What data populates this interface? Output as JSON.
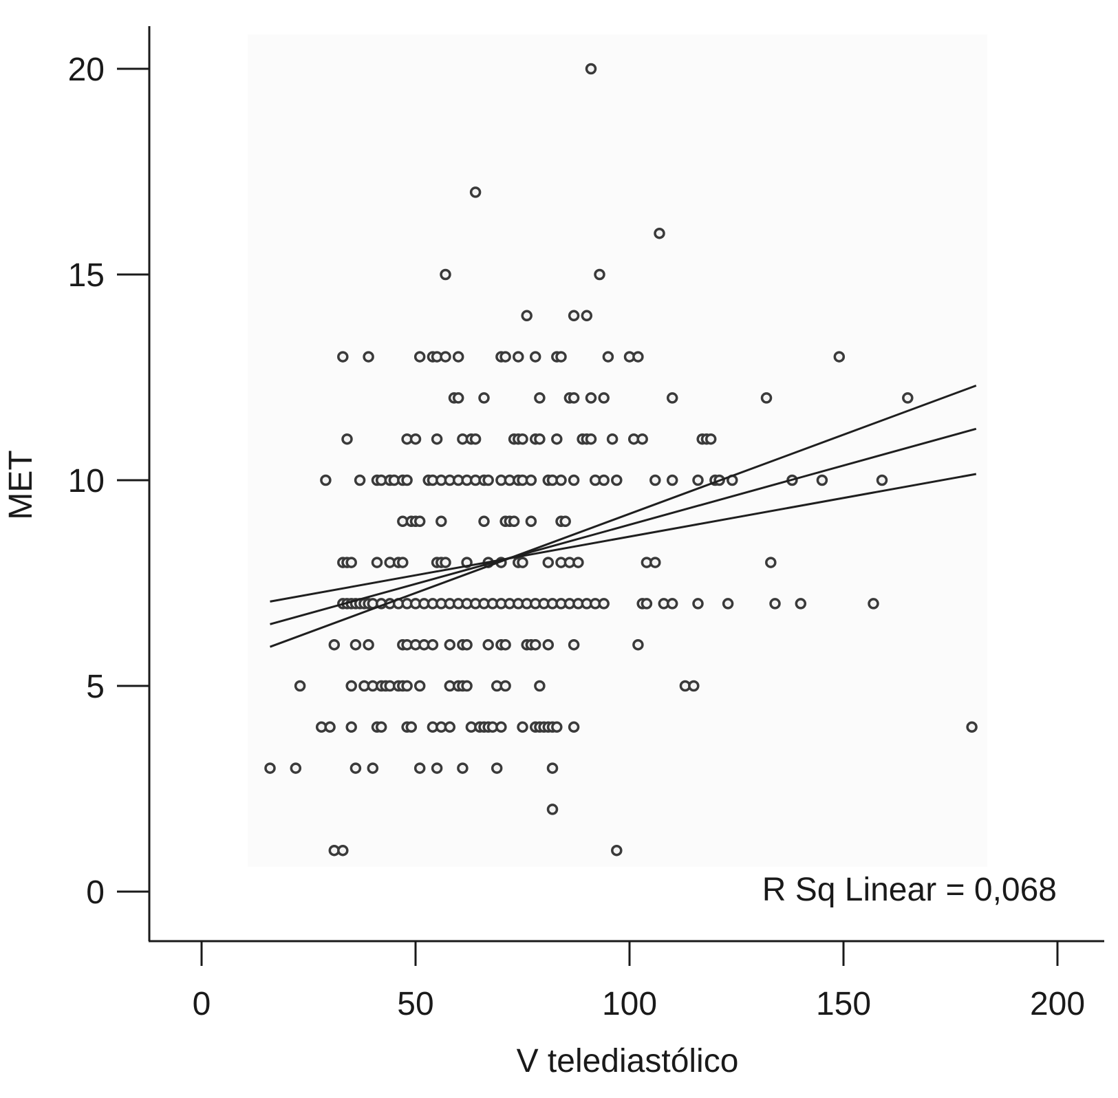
{
  "chart_data": {
    "type": "scatter",
    "xlabel": "V telediastólico",
    "ylabel": "MET",
    "xlim": [
      -12,
      212
    ],
    "ylim": [
      -1.2,
      21.2
    ],
    "xticks": [
      0,
      50,
      100,
      150,
      200
    ],
    "yticks": [
      0,
      5,
      10,
      15,
      20
    ],
    "grid": false,
    "annotation": "R Sq Linear = 0,068",
    "fit_line": {
      "x": [
        16,
        181
      ],
      "y": [
        6.5,
        11.25
      ]
    },
    "ci_upper": {
      "x": [
        16,
        181
      ],
      "y": [
        5.95,
        12.3
      ]
    },
    "ci_lower": {
      "x": [
        16,
        181
      ],
      "y": [
        7.05,
        10.15
      ]
    },
    "points": [
      [
        91,
        20
      ],
      [
        64,
        17
      ],
      [
        107,
        16
      ],
      [
        57,
        15
      ],
      [
        93,
        15
      ],
      [
        76,
        14
      ],
      [
        87,
        14
      ],
      [
        90,
        14
      ],
      [
        33,
        13
      ],
      [
        39,
        13
      ],
      [
        51,
        13
      ],
      [
        54,
        13
      ],
      [
        55,
        13
      ],
      [
        57,
        13
      ],
      [
        60,
        13
      ],
      [
        70,
        13
      ],
      [
        71,
        13
      ],
      [
        74,
        13
      ],
      [
        78,
        13
      ],
      [
        83,
        13
      ],
      [
        84,
        13
      ],
      [
        95,
        13
      ],
      [
        100,
        13
      ],
      [
        102,
        13
      ],
      [
        149,
        13
      ],
      [
        59,
        12
      ],
      [
        60,
        12
      ],
      [
        66,
        12
      ],
      [
        79,
        12
      ],
      [
        86,
        12
      ],
      [
        87,
        12
      ],
      [
        91,
        12
      ],
      [
        94,
        12
      ],
      [
        110,
        12
      ],
      [
        132,
        12
      ],
      [
        165,
        12
      ],
      [
        34,
        11
      ],
      [
        48,
        11
      ],
      [
        50,
        11
      ],
      [
        55,
        11
      ],
      [
        61,
        11
      ],
      [
        63,
        11
      ],
      [
        64,
        11
      ],
      [
        73,
        11
      ],
      [
        74,
        11
      ],
      [
        75,
        11
      ],
      [
        78,
        11
      ],
      [
        79,
        11
      ],
      [
        83,
        11
      ],
      [
        89,
        11
      ],
      [
        90,
        11
      ],
      [
        91,
        11
      ],
      [
        96,
        11
      ],
      [
        101,
        11
      ],
      [
        103,
        11
      ],
      [
        117,
        11
      ],
      [
        118,
        11
      ],
      [
        119,
        11
      ],
      [
        29,
        10
      ],
      [
        37,
        10
      ],
      [
        41,
        10
      ],
      [
        42,
        10
      ],
      [
        44,
        10
      ],
      [
        45,
        10
      ],
      [
        47,
        10
      ],
      [
        48,
        10
      ],
      [
        53,
        10
      ],
      [
        54,
        10
      ],
      [
        56,
        10
      ],
      [
        58,
        10
      ],
      [
        60,
        10
      ],
      [
        62,
        10
      ],
      [
        64,
        10
      ],
      [
        66,
        10
      ],
      [
        67,
        10
      ],
      [
        70,
        10
      ],
      [
        72,
        10
      ],
      [
        74,
        10
      ],
      [
        75,
        10
      ],
      [
        77,
        10
      ],
      [
        81,
        10
      ],
      [
        82,
        10
      ],
      [
        84,
        10
      ],
      [
        87,
        10
      ],
      [
        92,
        10
      ],
      [
        94,
        10
      ],
      [
        97,
        10
      ],
      [
        106,
        10
      ],
      [
        110,
        10
      ],
      [
        116,
        10
      ],
      [
        120,
        10
      ],
      [
        121,
        10
      ],
      [
        124,
        10
      ],
      [
        138,
        10
      ],
      [
        145,
        10
      ],
      [
        159,
        10
      ],
      [
        47,
        9
      ],
      [
        49,
        9
      ],
      [
        50,
        9
      ],
      [
        51,
        9
      ],
      [
        56,
        9
      ],
      [
        66,
        9
      ],
      [
        71,
        9
      ],
      [
        72,
        9
      ],
      [
        73,
        9
      ],
      [
        77,
        9
      ],
      [
        84,
        9
      ],
      [
        85,
        9
      ],
      [
        33,
        8
      ],
      [
        34,
        8
      ],
      [
        35,
        8
      ],
      [
        41,
        8
      ],
      [
        44,
        8
      ],
      [
        46,
        8
      ],
      [
        47,
        8
      ],
      [
        55,
        8
      ],
      [
        56,
        8
      ],
      [
        57,
        8
      ],
      [
        62,
        8
      ],
      [
        67,
        8
      ],
      [
        70,
        8
      ],
      [
        74,
        8
      ],
      [
        75,
        8
      ],
      [
        81,
        8
      ],
      [
        84,
        8
      ],
      [
        86,
        8
      ],
      [
        88,
        8
      ],
      [
        104,
        8
      ],
      [
        106,
        8
      ],
      [
        133,
        8
      ],
      [
        33,
        7
      ],
      [
        34,
        7
      ],
      [
        35,
        7
      ],
      [
        36,
        7
      ],
      [
        37,
        7
      ],
      [
        38,
        7
      ],
      [
        39,
        7
      ],
      [
        40,
        7
      ],
      [
        42,
        7
      ],
      [
        44,
        7
      ],
      [
        46,
        7
      ],
      [
        48,
        7
      ],
      [
        50,
        7
      ],
      [
        52,
        7
      ],
      [
        54,
        7
      ],
      [
        56,
        7
      ],
      [
        58,
        7
      ],
      [
        60,
        7
      ],
      [
        62,
        7
      ],
      [
        64,
        7
      ],
      [
        66,
        7
      ],
      [
        68,
        7
      ],
      [
        70,
        7
      ],
      [
        72,
        7
      ],
      [
        74,
        7
      ],
      [
        76,
        7
      ],
      [
        78,
        7
      ],
      [
        80,
        7
      ],
      [
        82,
        7
      ],
      [
        84,
        7
      ],
      [
        86,
        7
      ],
      [
        88,
        7
      ],
      [
        90,
        7
      ],
      [
        92,
        7
      ],
      [
        94,
        7
      ],
      [
        103,
        7
      ],
      [
        104,
        7
      ],
      [
        108,
        7
      ],
      [
        110,
        7
      ],
      [
        116,
        7
      ],
      [
        123,
        7
      ],
      [
        134,
        7
      ],
      [
        140,
        7
      ],
      [
        157,
        7
      ],
      [
        31,
        6
      ],
      [
        36,
        6
      ],
      [
        39,
        6
      ],
      [
        47,
        6
      ],
      [
        48,
        6
      ],
      [
        50,
        6
      ],
      [
        52,
        6
      ],
      [
        54,
        6
      ],
      [
        58,
        6
      ],
      [
        61,
        6
      ],
      [
        62,
        6
      ],
      [
        67,
        6
      ],
      [
        70,
        6
      ],
      [
        71,
        6
      ],
      [
        76,
        6
      ],
      [
        77,
        6
      ],
      [
        78,
        6
      ],
      [
        81,
        6
      ],
      [
        87,
        6
      ],
      [
        102,
        6
      ],
      [
        23,
        5
      ],
      [
        35,
        5
      ],
      [
        38,
        5
      ],
      [
        40,
        5
      ],
      [
        42,
        5
      ],
      [
        43,
        5
      ],
      [
        44,
        5
      ],
      [
        46,
        5
      ],
      [
        47,
        5
      ],
      [
        48,
        5
      ],
      [
        51,
        5
      ],
      [
        58,
        5
      ],
      [
        60,
        5
      ],
      [
        61,
        5
      ],
      [
        62,
        5
      ],
      [
        69,
        5
      ],
      [
        71,
        5
      ],
      [
        79,
        5
      ],
      [
        113,
        5
      ],
      [
        115,
        5
      ],
      [
        28,
        4
      ],
      [
        30,
        4
      ],
      [
        35,
        4
      ],
      [
        41,
        4
      ],
      [
        42,
        4
      ],
      [
        48,
        4
      ],
      [
        49,
        4
      ],
      [
        54,
        4
      ],
      [
        56,
        4
      ],
      [
        58,
        4
      ],
      [
        63,
        4
      ],
      [
        65,
        4
      ],
      [
        66,
        4
      ],
      [
        67,
        4
      ],
      [
        68,
        4
      ],
      [
        70,
        4
      ],
      [
        75,
        4
      ],
      [
        78,
        4
      ],
      [
        79,
        4
      ],
      [
        80,
        4
      ],
      [
        81,
        4
      ],
      [
        82,
        4
      ],
      [
        83,
        4
      ],
      [
        87,
        4
      ],
      [
        180,
        4
      ],
      [
        16,
        3
      ],
      [
        22,
        3
      ],
      [
        36,
        3
      ],
      [
        40,
        3
      ],
      [
        51,
        3
      ],
      [
        55,
        3
      ],
      [
        61,
        3
      ],
      [
        69,
        3
      ],
      [
        82,
        3
      ],
      [
        82,
        2
      ],
      [
        31,
        1
      ],
      [
        33,
        1
      ],
      [
        97,
        1
      ]
    ]
  }
}
